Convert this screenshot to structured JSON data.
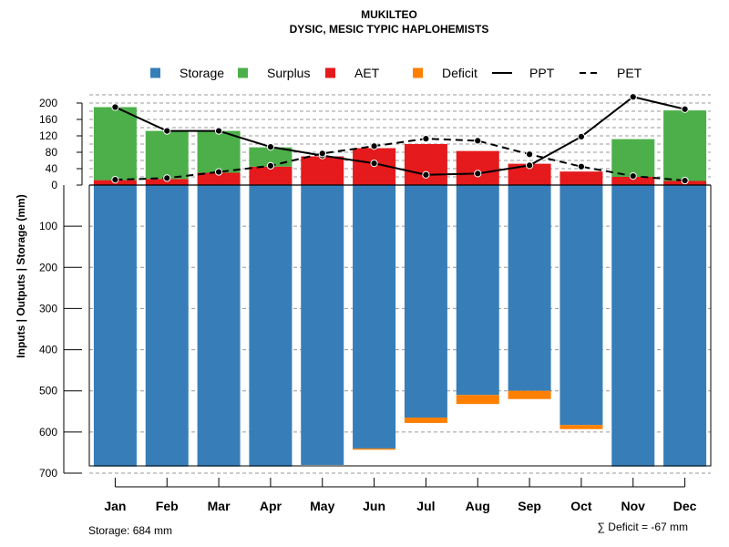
{
  "chart_data": {
    "type": "bar",
    "title": "MUKILTEO",
    "subtitle": "DYSIC, MESIC TYPIC HAPLOHEMISTS",
    "ylabel": "Inputs | Outputs | Storage    (mm)",
    "categories": [
      "Jan",
      "Feb",
      "Mar",
      "Apr",
      "May",
      "Jun",
      "Jul",
      "Aug",
      "Sep",
      "Oct",
      "Nov",
      "Dec"
    ],
    "upper_ticks": [
      "200",
      "160",
      "120",
      "80",
      "40",
      "0"
    ],
    "upper_tick_values": [
      200,
      160,
      120,
      80,
      40,
      0
    ],
    "upper_gridlines": [
      220,
      200,
      180,
      160,
      140,
      120,
      100,
      80,
      60,
      40,
      20
    ],
    "lower_ticks": [
      "100",
      "200",
      "300",
      "400",
      "500",
      "600",
      "700"
    ],
    "lower_tick_values": [
      100,
      200,
      300,
      400,
      500,
      600,
      700
    ],
    "upper_ylim": [
      0,
      220
    ],
    "lower_ylim": [
      0,
      700
    ],
    "legend": [
      {
        "label": "Storage",
        "kind": "box",
        "color": "#377EB8"
      },
      {
        "label": "Surplus",
        "kind": "box",
        "color": "#4DAF4A"
      },
      {
        "label": "AET",
        "kind": "box",
        "color": "#E41A1C"
      },
      {
        "label": "Deficit",
        "kind": "box",
        "color": "#FF7F00"
      },
      {
        "label": "PPT",
        "kind": "solid-line",
        "color": "#000000"
      },
      {
        "label": "PET",
        "kind": "dashed-line",
        "color": "#000000"
      }
    ],
    "series": [
      {
        "name": "AET",
        "color": "#E41A1C",
        "values": [
          12,
          15,
          30,
          45,
          70,
          90,
          100,
          83,
          52,
          33,
          20,
          10
        ]
      },
      {
        "name": "Surplus",
        "color": "#4DAF4A",
        "values": [
          178,
          117,
          102,
          47,
          0,
          0,
          0,
          0,
          0,
          0,
          92,
          172
        ]
      },
      {
        "name": "Storage",
        "color": "#377EB8",
        "values": [
          684,
          684,
          684,
          684,
          680,
          640,
          565,
          510,
          500,
          583,
          684,
          684
        ]
      },
      {
        "name": "Deficit",
        "color": "#FF7F00",
        "values": [
          0,
          0,
          0,
          0,
          0,
          3,
          13,
          22,
          20,
          10,
          0,
          0
        ]
      },
      {
        "name": "PPT",
        "color": "#000000",
        "values": [
          190,
          132,
          132,
          93,
          72,
          53,
          25,
          28,
          48,
          118,
          215,
          185
        ]
      },
      {
        "name": "PET",
        "color": "#000000",
        "values": [
          13,
          17,
          32,
          47,
          77,
          95,
          113,
          108,
          75,
          45,
          22,
          11
        ]
      }
    ],
    "storage_note": "Storage: 684 mm",
    "deficit_note": "∑ Deficit = -67 mm"
  }
}
